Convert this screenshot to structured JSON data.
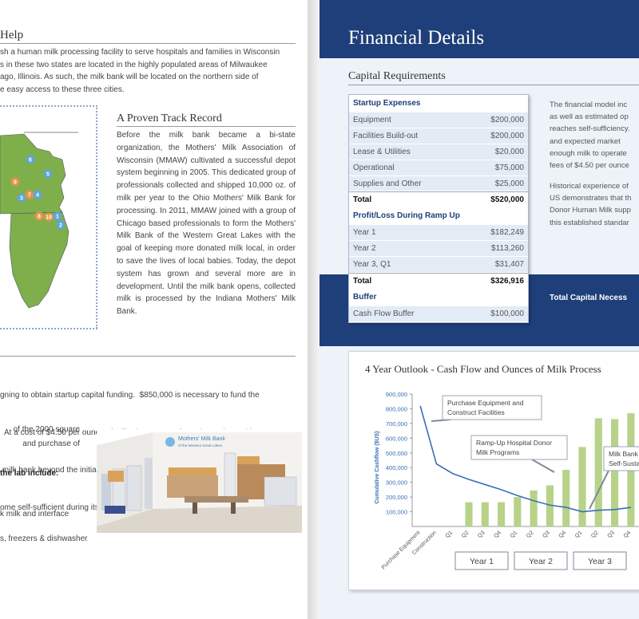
{
  "left": {
    "help_title": "Help",
    "intro_lines": [
      "sh a human milk processing facility to serve hospitals and families in Wisconsin",
      "s in these two states are located in the highly populated areas of Milwaukee",
      "ago, Illinois.  As such, the milk bank will be located on the northern side of",
      "e easy access to these three cities."
    ],
    "track_title": "A Proven Track Record",
    "track_paragraph": "Before the milk bank became a bi-state organization, the Mothers' Milk Association of Wisconsin (MMAW) cultivated a successful depot system beginning in 2005. This dedicated group of professionals collected and shipped 10,000 oz. of milk per year to the Ohio Mothers' Milk Bank for processing. In 2011, MMAW joined with a group of Chicago based professionals to form the Mothers' Milk Bank of the Western Great Lakes with the goal of keeping more donated milk local, in order to save the lives of local babies.  Today, the depot system has grown and several more are in development. Until the milk bank opens, collected milk is processed by the Indiana Mothers' Milk Bank.",
    "map_markers": [
      "6",
      "5",
      "9",
      "3",
      "7",
      "4",
      "8",
      "10",
      "1",
      "2"
    ],
    "funding_lines": [
      "gning to obtain startup capital funding.  $850,000 is necessary to fund the",
      "  At a cost of $4.50 per ounce of milk, the program fees charged are able",
      " milk bank beyond the initial startup phase. Based on the financial analysis",
      "ome self-sufficient during its third year of operations."
    ],
    "lab_lines": [
      "of the 2000 square",
      "and  purchase  of"
    ],
    "lab_heading": "the lab include:",
    "lab_item_1": "k milk and interface",
    "lab_item_2": "s, freezers & dishwasher",
    "lab_sign_line1": "Mothers' Milk Bank",
    "lab_sign_line2": "of the Western Great Lakes"
  },
  "right": {
    "banner_title": "Financial Details",
    "capital_title": "Capital Requirements",
    "table": {
      "section1": "Startup Expenses",
      "startup_rows": [
        {
          "label": "Equipment",
          "value": "$200,000"
        },
        {
          "label": "Facilities Build-out",
          "value": "$200,000"
        },
        {
          "label": "Lease & Utilities",
          "value": "$20,000"
        },
        {
          "label": "Operational",
          "value": "$75,000"
        },
        {
          "label": "Supplies and Other",
          "value": "$25,000"
        }
      ],
      "total1": {
        "label": "Total",
        "value": "$520,000"
      },
      "section2": "Profit/Loss During Ramp Up",
      "ramp_rows": [
        {
          "label": "Year 1",
          "value": "$182,249"
        },
        {
          "label": "Year 2",
          "value": "$113,260"
        },
        {
          "label": "Year 3, Q1",
          "value": "$31,407"
        }
      ],
      "total2": {
        "label": "Total",
        "value": "$326,916"
      },
      "section3": "Buffer",
      "buffer_rows": [
        {
          "label": "Cash Flow Buffer",
          "value": "$100,000"
        }
      ]
    },
    "side_para1": [
      "The financial model inc",
      "as well as estimated op",
      "reaches self-sufficiency.",
      "and  expected  market",
      "enough milk to operate",
      "fees of $4.50 per ounce"
    ],
    "side_para2": [
      "Historical experience of",
      "US demonstrates that th",
      "Donor Human Milk supp",
      "this established standar"
    ],
    "total_capital_label": "Total Capital Necess",
    "chart_title": "4 Year Outlook - Cash Flow and Ounces of Milk Process"
  },
  "chart_data": {
    "type": "bar",
    "title": "4 Year Outlook - Cash Flow and Ounces of Milk Process",
    "ylabel": "Cumulative Cashflow ($US)",
    "ylim": [
      0,
      900000
    ],
    "yticks": [
      "100,000",
      "200,000",
      "300,000",
      "400,000",
      "500,000",
      "600,000",
      "700,000",
      "800,000",
      "900,000"
    ],
    "ytick_values": [
      100000,
      200000,
      300000,
      400000,
      500000,
      600000,
      700000,
      800000,
      900000
    ],
    "categories": [
      "Purchase Equipment",
      "Construction",
      "Q1",
      "Q2",
      "Q3",
      "Q4",
      "Q1",
      "Q2",
      "Q3",
      "Q4",
      "Q1",
      "Q2",
      "Q3",
      "Q4"
    ],
    "series": [
      {
        "values": [
          0,
          0,
          0,
          165000,
          165000,
          165000,
          200000,
          245000,
          280000,
          385000,
          540000,
          735000,
          730000,
          770000
        ]
      },
      {
        "values": [
          820000,
          425000,
          360000,
          320000,
          285000,
          250000,
          210000,
          175000,
          145000,
          130000,
          100000,
          110000,
          115000,
          130000
        ]
      }
    ],
    "bar_color": "#b7d38a",
    "line_color": "#3b6fb6",
    "annotations": [
      {
        "text_line1": "Purchase Equipment and",
        "text_line2": "Construct Facilities"
      },
      {
        "text_line1": "Ramp-Up Hospital Donor",
        "text_line2": "Milk Programs"
      },
      {
        "text_line1": "Milk Bank",
        "text_line2": "Self-Susta"
      }
    ],
    "year_labels": [
      "Year 1",
      "Year 2",
      "Year 3"
    ],
    "grid": false
  },
  "colors": {
    "navy": "#1f3f7a",
    "map_green": "#7faf4a",
    "marker_blue": "#5fa6d8",
    "marker_orange": "#e8924a"
  }
}
